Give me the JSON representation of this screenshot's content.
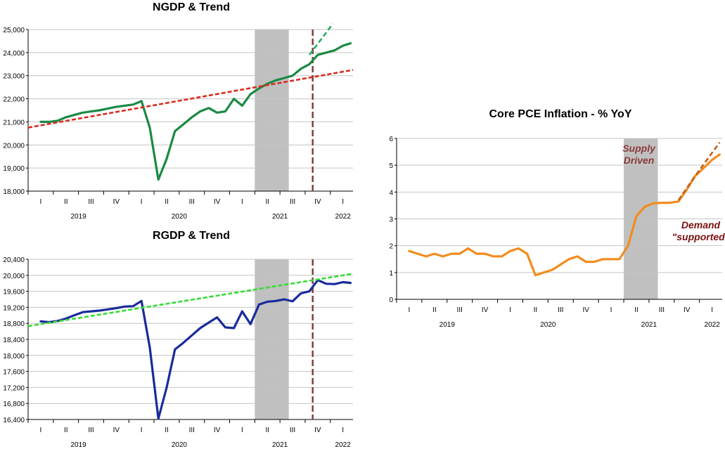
{
  "chart_data": [
    {
      "id": "ngdp",
      "type": "line",
      "title": "NGDP & Trend",
      "xlabel": "",
      "ylabel": "",
      "ylim": [
        18000,
        25000
      ],
      "yticks": [
        18000,
        19000,
        20000,
        21000,
        22000,
        23000,
        24000,
        25000
      ],
      "ytick_labels": [
        "18,000",
        "19,000",
        "20,000",
        "21,000",
        "22,000",
        "23,000",
        "24,000",
        "25,000"
      ],
      "xlim": [
        -0.5,
        12.4
      ],
      "quarter_ticks": [
        "I",
        "II",
        "III",
        "IV",
        "I",
        "II",
        "III",
        "IV",
        "I",
        "II",
        "III",
        "IV",
        "I"
      ],
      "year_labels": [
        {
          "label": "2019",
          "x": 1.5
        },
        {
          "label": "2020",
          "x": 5.5
        },
        {
          "label": "2021",
          "x": 9.5
        },
        {
          "label": "2022",
          "x": 12.0
        }
      ],
      "shaded_region": [
        8.5,
        9.85
      ],
      "vline": 10.8,
      "series": [
        {
          "name": "NGDP",
          "color": "#1a8a44",
          "width": 3.2,
          "dash": "",
          "x": [
            0,
            0.33,
            0.67,
            1,
            1.33,
            1.67,
            2,
            2.33,
            2.67,
            3,
            3.33,
            3.67,
            4,
            4.33,
            4.67,
            5,
            5.33,
            5.67,
            6,
            6.33,
            6.67,
            7,
            7.33,
            7.67,
            8,
            8.33,
            8.67,
            9,
            9.33,
            9.67,
            10,
            10.33,
            10.67,
            11,
            11.33,
            11.67,
            12,
            12.3
          ],
          "y": [
            21000,
            21000,
            21050,
            21200,
            21300,
            21400,
            21450,
            21500,
            21580,
            21650,
            21700,
            21750,
            21900,
            20750,
            18500,
            19400,
            20600,
            20900,
            21200,
            21450,
            21600,
            21400,
            21450,
            22000,
            21700,
            22200,
            22450,
            22650,
            22800,
            22900,
            23000,
            23300,
            23500,
            23900,
            24000,
            24100,
            24300,
            24400
          ]
        },
        {
          "name": "NGDP trend",
          "color": "#d92b20",
          "width": 2.6,
          "dash": "6,3",
          "x": [
            -0.5,
            12.4
          ],
          "y": [
            20750,
            23250
          ]
        },
        {
          "name": "NGDP pre-trend continuation",
          "color": "#25b060",
          "width": 2.6,
          "dash": "7,4",
          "x": [
            10.67,
            11.6
          ],
          "y": [
            23900,
            25250
          ]
        }
      ]
    },
    {
      "id": "rgdp",
      "type": "line",
      "title": "RGDP & Trend",
      "xlabel": "",
      "ylabel": "",
      "ylim": [
        16400,
        20400
      ],
      "yticks": [
        16400,
        16800,
        17200,
        17600,
        18000,
        18400,
        18800,
        19200,
        19600,
        20000,
        20400
      ],
      "ytick_labels": [
        "16,400",
        "16,800",
        "17,200",
        "17,600",
        "18,000",
        "18,400",
        "18,800",
        "19,200",
        "19,600",
        "20,000",
        "20,400"
      ],
      "xlim": [
        -0.5,
        12.4
      ],
      "quarter_ticks": [
        "I",
        "II",
        "III",
        "IV",
        "I",
        "II",
        "III",
        "IV",
        "I",
        "II",
        "III",
        "IV",
        "I"
      ],
      "year_labels": [
        {
          "label": "2019",
          "x": 1.5
        },
        {
          "label": "2020",
          "x": 5.5
        },
        {
          "label": "2021",
          "x": 9.5
        },
        {
          "label": "2022",
          "x": 12.0
        }
      ],
      "shaded_region": [
        8.5,
        9.85
      ],
      "vline": 10.8,
      "series": [
        {
          "name": "RGDP",
          "color": "#1a2b9c",
          "width": 3.2,
          "dash": "",
          "x": [
            0,
            0.33,
            0.67,
            1,
            1.33,
            1.67,
            2,
            2.33,
            2.67,
            3,
            3.33,
            3.67,
            4,
            4.33,
            4.67,
            5,
            5.33,
            5.67,
            6,
            6.33,
            6.67,
            7,
            7.33,
            7.67,
            8,
            8.33,
            8.67,
            9,
            9.33,
            9.67,
            10,
            10.33,
            10.67,
            11,
            11.33,
            11.67,
            12,
            12.3
          ],
          "y": [
            18850,
            18830,
            18860,
            18920,
            19000,
            19080,
            19100,
            19120,
            19150,
            19180,
            19220,
            19230,
            19360,
            18200,
            16420,
            17200,
            18150,
            18320,
            18500,
            18680,
            18820,
            18950,
            18700,
            18680,
            19100,
            18780,
            19270,
            19340,
            19360,
            19400,
            19350,
            19550,
            19600,
            19880,
            19790,
            19780,
            19830,
            19810
          ]
        },
        {
          "name": "RGDP trend",
          "color": "#33dd33",
          "width": 2.6,
          "dash": "6,3",
          "x": [
            -0.5,
            12.4
          ],
          "y": [
            18730,
            20040
          ]
        }
      ]
    },
    {
      "id": "pce",
      "type": "line",
      "title": "Core PCE Inflation - % YoY",
      "xlabel": "",
      "ylabel": "",
      "ylim": [
        0,
        6
      ],
      "yticks": [
        0,
        1,
        2,
        3,
        4,
        5,
        6
      ],
      "ytick_labels": [
        "0",
        "1",
        "2",
        "3",
        "4",
        "5",
        "6"
      ],
      "xlim": [
        -0.5,
        12.4
      ],
      "quarter_ticks": [
        "I",
        "II",
        "III",
        "IV",
        "I",
        "II",
        "III",
        "IV",
        "I",
        "II",
        "III",
        "IV",
        "I"
      ],
      "year_labels": [
        {
          "label": "2019",
          "x": 1.5
        },
        {
          "label": "2020",
          "x": 5.5
        },
        {
          "label": "2021",
          "x": 9.5
        },
        {
          "label": "2022",
          "x": 12.0
        }
      ],
      "shaded_region": [
        8.5,
        9.85
      ],
      "series": [
        {
          "name": "Core PCE",
          "color": "#f28c1e",
          "width": 3.2,
          "dash": "",
          "x": [
            0,
            0.33,
            0.67,
            1,
            1.33,
            1.67,
            2,
            2.33,
            2.67,
            3,
            3.33,
            3.67,
            4,
            4.33,
            4.67,
            5,
            5.33,
            5.67,
            6,
            6.33,
            6.67,
            7,
            7.33,
            7.67,
            8,
            8.33,
            8.67,
            9,
            9.33,
            9.67,
            10,
            10.33,
            10.67,
            11,
            11.33,
            11.67,
            12,
            12.3
          ],
          "y": [
            1.8,
            1.7,
            1.6,
            1.7,
            1.6,
            1.7,
            1.7,
            1.9,
            1.7,
            1.7,
            1.6,
            1.6,
            1.8,
            1.9,
            1.7,
            0.9,
            1.0,
            1.1,
            1.3,
            1.5,
            1.6,
            1.4,
            1.4,
            1.5,
            1.5,
            1.5,
            2.0,
            3.1,
            3.45,
            3.58,
            3.6,
            3.6,
            3.65,
            4.1,
            4.6,
            4.9,
            5.2,
            5.4
          ]
        },
        {
          "name": "Core PCE projection",
          "color": "#c0621a",
          "width": 2.6,
          "dash": "7,4",
          "x": [
            10.67,
            11.33,
            12.3
          ],
          "y": [
            3.7,
            4.6,
            5.85
          ]
        }
      ],
      "annotations": [
        {
          "lines": [
            "Supply",
            "Driven"
          ],
          "color": "#8b3a3a",
          "x": 9.1,
          "y": 5.5
        },
        {
          "lines": [
            "Demand",
            "\"supported\""
          ],
          "color": "#7a1010",
          "x": 11.55,
          "y": 2.65
        }
      ]
    }
  ]
}
